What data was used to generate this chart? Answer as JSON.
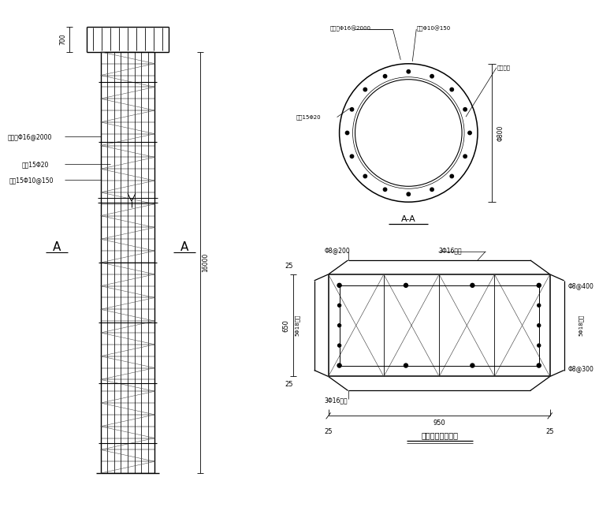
{
  "bg_color": "#ffffff",
  "line_color": "#000000",
  "fig_width": 7.6,
  "fig_height": 6.43,
  "title": "灵注桦冠梁配筋图",
  "dim_700": "700",
  "dim_16000": "16000",
  "dim_800": "Φ800",
  "section_label": "A-A",
  "label_reinf1": "加强筅Φ16@2000",
  "label_reinf2": "纵等15Φ20",
  "label_reinf3": "符等15Φ10@150",
  "circ_label1": "加强筅Φ16@2000",
  "circ_label2": "符筅Φ10@150",
  "circ_label3": "混凝土桃",
  "circ_label4": "纵等15Φ20",
  "beam_top_bar": "Φ8@200",
  "beam_top_long": "3Φ16通长",
  "beam_side_left": "5Φ18通长",
  "beam_side_right1": "Φ8@400",
  "beam_side_right2": "5Φ18通长",
  "beam_bot_long": "3Φ16通长",
  "beam_bot_bar": "Φ8@300",
  "dim_950": "950",
  "dim_25a": "25",
  "dim_25b": "25",
  "dim_25top": "25",
  "dim_25bot": "25",
  "dim_650": "650"
}
